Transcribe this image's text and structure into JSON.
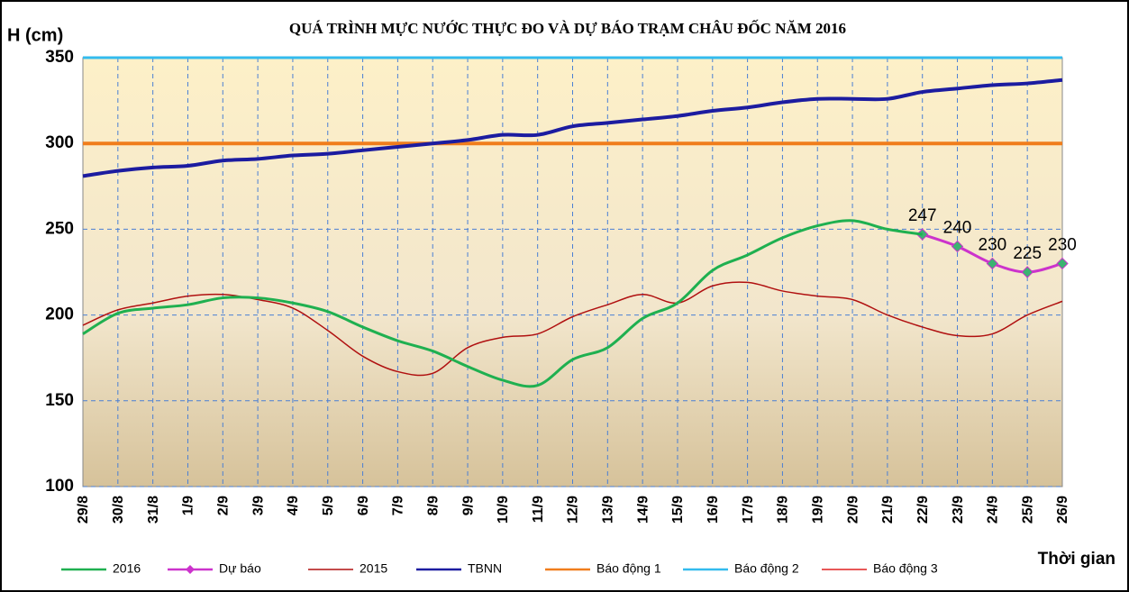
{
  "chart_data": {
    "type": "line",
    "title": "QUÁ TRÌNH MỰC NƯỚC THỰC ĐO VÀ DỰ BÁO TRẠM CHÂU ĐỐC  NĂM 2016",
    "y_label": "H (cm)",
    "x_label": "Thời gian",
    "categories": [
      "29/8",
      "30/8",
      "31/8",
      "1/9",
      "2/9",
      "3/9",
      "4/9",
      "5/9",
      "6/9",
      "7/9",
      "8/9",
      "9/9",
      "10/9",
      "11/9",
      "12/9",
      "13/9",
      "14/9",
      "15/9",
      "16/9",
      "17/9",
      "18/9",
      "19/9",
      "20/9",
      "21/9",
      "22/9",
      "23/9",
      "24/9",
      "25/9",
      "26/9"
    ],
    "series": [
      {
        "name": "2016",
        "color": "#1fb050",
        "width": 3,
        "values": [
          189,
          201,
          204,
          206,
          210,
          210,
          207,
          202,
          193,
          185,
          179,
          170,
          162,
          159,
          174,
          181,
          198,
          207,
          226,
          235,
          245,
          252,
          255,
          250,
          247,
          null,
          null,
          null,
          null
        ]
      },
      {
        "name": "Dự báo",
        "color": "#cc33cc",
        "width": 3,
        "marker": "diamond",
        "marker_color": "#3cb371",
        "show_values": true,
        "values": [
          null,
          null,
          null,
          null,
          null,
          null,
          null,
          null,
          null,
          null,
          null,
          null,
          null,
          null,
          null,
          null,
          null,
          null,
          null,
          null,
          null,
          null,
          null,
          null,
          247,
          240,
          230,
          225,
          230
        ]
      },
      {
        "name": "2015",
        "color": "#b01010",
        "width": 1.5,
        "values": [
          194,
          203,
          207,
          211,
          212,
          209,
          204,
          191,
          176,
          167,
          166,
          181,
          187,
          189,
          199,
          206,
          212,
          207,
          217,
          219,
          214,
          211,
          209,
          200,
          193,
          188,
          189,
          200,
          208
        ]
      },
      {
        "name": "TBNN",
        "color": "#1c1ca0",
        "width": 4,
        "values": [
          281,
          284,
          286,
          287,
          290,
          291,
          293,
          294,
          296,
          298,
          300,
          302,
          305,
          305,
          310,
          312,
          314,
          316,
          319,
          321,
          324,
          326,
          326,
          326,
          330,
          332,
          334,
          335,
          337
        ]
      },
      {
        "name": "Báo động 1",
        "color": "#f07d1c",
        "width": 4,
        "values": [
          300,
          300,
          300,
          300,
          300,
          300,
          300,
          300,
          300,
          300,
          300,
          300,
          300,
          300,
          300,
          300,
          300,
          300,
          300,
          300,
          300,
          300,
          300,
          300,
          300,
          300,
          300,
          300,
          300
        ]
      },
      {
        "name": "Báo động 2",
        "color": "#33bbee",
        "width": 3,
        "values": [
          350,
          350,
          350,
          350,
          350,
          350,
          350,
          350,
          350,
          350,
          350,
          350,
          350,
          350,
          350,
          350,
          350,
          350,
          350,
          350,
          350,
          350,
          350,
          350,
          350,
          350,
          350,
          350,
          350
        ]
      },
      {
        "name": "Báo động 3",
        "color": "#e02020",
        "width": 1.5,
        "values": [
          null,
          null,
          null,
          null,
          null,
          null,
          null,
          null,
          null,
          null,
          null,
          null,
          null,
          null,
          null,
          null,
          null,
          null,
          null,
          null,
          null,
          null,
          null,
          null,
          null,
          null,
          null,
          null,
          null
        ]
      }
    ],
    "ylim": [
      100,
      350
    ],
    "yticks": [
      100,
      150,
      200,
      250,
      300,
      350
    ],
    "grid": true
  }
}
